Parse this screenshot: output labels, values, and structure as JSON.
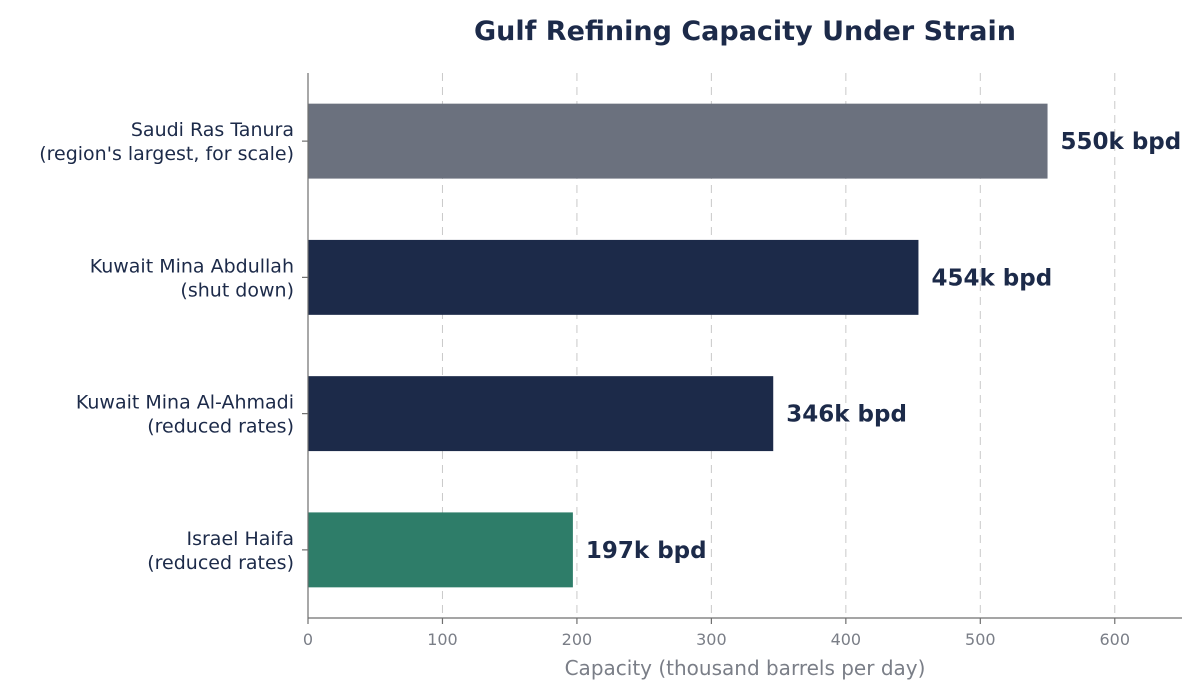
{
  "chart_data": {
    "type": "bar",
    "orientation": "horizontal",
    "title": "Gulf Refining Capacity Under Strain",
    "xlabel": "Capacity (thousand barrels per day)",
    "ylabel": "",
    "xlim": [
      0,
      650
    ],
    "xticks": [
      0,
      100,
      200,
      300,
      400,
      500,
      600
    ],
    "grid": "x-dashed",
    "categories": [
      {
        "line1": "Saudi Ras Tanura",
        "line2": "(region's largest, for scale)"
      },
      {
        "line1": "Kuwait Mina Abdullah",
        "line2": "(shut down)"
      },
      {
        "line1": "Kuwait Mina Al-Ahmadi",
        "line2": "(reduced rates)"
      },
      {
        "line1": "Israel Haifa",
        "line2": "(reduced rates)"
      }
    ],
    "values": [
      550,
      454,
      346,
      197
    ],
    "value_labels": [
      "550k bpd",
      "454k bpd",
      "346k bpd",
      "197k bpd"
    ],
    "colors": [
      "#6b717e",
      "#1c2a49",
      "#1c2a49",
      "#2e7d69"
    ]
  }
}
